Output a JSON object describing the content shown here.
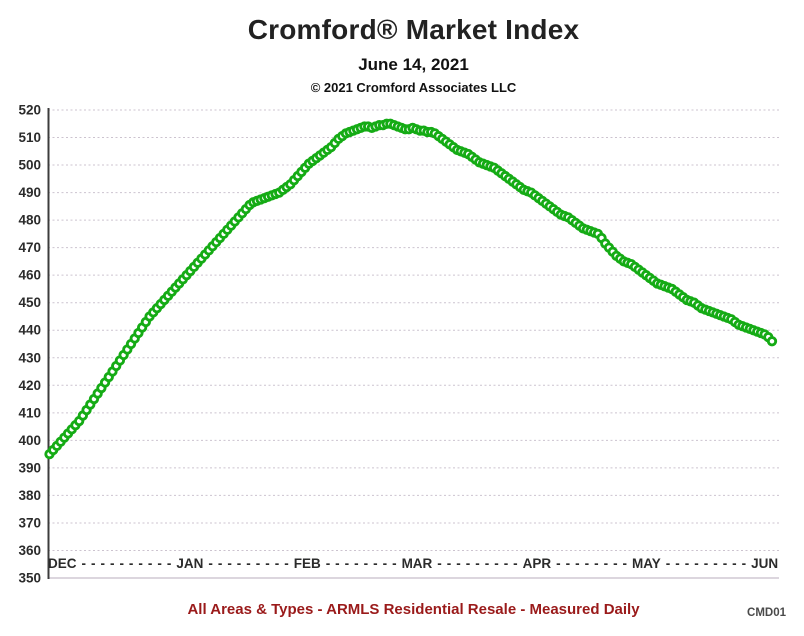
{
  "header": {
    "title": "Cromford® Market Index",
    "date": "June 14, 2021",
    "copyright": "© 2021 Cromford Associates LLC"
  },
  "footer": {
    "caption": "All Areas & Types - ARMLS Residential Resale - Measured Daily",
    "code": "CMD01"
  },
  "colors": {
    "marker_green": "#15ab15",
    "footer_red": "#9a1a1a",
    "gridline": "#ccc3cf",
    "axis_line": "#3c3c3c",
    "tick_label": "#2b2b2b"
  },
  "chart_data": {
    "type": "scatter",
    "title": "Cromford® Market Index",
    "subtitle": "June 14, 2021",
    "frequency": "daily",
    "x_range": {
      "start": "Dec 1, 2020",
      "end": "Jun 14, 2021"
    },
    "x_axis": {
      "tick_labels": [
        "DEC",
        "JAN",
        "FEB",
        "MAR",
        "APR",
        "MAY",
        "JUN"
      ],
      "dash_counts_between": [
        10,
        9,
        8,
        9,
        8,
        9
      ]
    },
    "y_axis": {
      "min": 350,
      "max": 520,
      "tick_step": 10
    },
    "grid": true,
    "legend": false,
    "marker": {
      "shape": "ring",
      "color": "#15ab15"
    },
    "series": [
      {
        "name": "Cromford Market Index",
        "values": [
          395,
          396.5,
          398,
          399.5,
          401,
          402.5,
          404,
          405.5,
          407,
          409,
          411,
          413,
          415,
          417,
          419,
          421,
          423,
          425,
          427,
          429,
          431,
          433,
          435,
          437,
          439,
          441,
          443,
          445,
          446.5,
          448,
          449.5,
          451,
          452.5,
          454,
          455.5,
          457,
          458.5,
          460,
          461.5,
          463,
          464.5,
          466,
          467.5,
          469,
          470.5,
          472,
          473.5,
          475,
          476.5,
          478,
          479.5,
          481,
          482.5,
          484,
          485.5,
          486.5,
          487,
          487.5,
          488,
          488.5,
          489,
          489.5,
          490,
          491,
          492,
          493,
          494.5,
          496,
          497.5,
          499,
          500.5,
          501.5,
          502.5,
          503.5,
          504.5,
          505.5,
          506.5,
          508,
          509.5,
          510.5,
          511.5,
          512,
          512.5,
          513,
          513.5,
          514,
          514,
          513.5,
          514,
          514.5,
          514.5,
          515,
          515,
          514.5,
          514,
          513.5,
          513,
          513,
          513.5,
          513,
          512.5,
          512.5,
          512,
          512,
          511.5,
          510.5,
          509.5,
          508.5,
          507.5,
          506.5,
          505.5,
          505,
          504.5,
          504,
          503,
          502,
          501,
          500.5,
          500,
          499.5,
          499,
          498,
          497,
          496,
          495,
          494,
          493,
          492,
          491,
          490.5,
          490,
          489,
          488,
          487,
          486,
          485,
          484,
          483,
          482,
          481.5,
          481,
          480,
          479,
          478,
          477,
          476.5,
          476,
          475.5,
          475,
          473.5,
          471.5,
          470,
          468.5,
          467,
          466,
          465,
          464.5,
          464,
          463,
          462,
          461,
          460,
          459,
          458,
          457,
          456.5,
          456,
          455.5,
          455,
          454,
          453,
          452,
          451,
          450.5,
          450,
          449,
          448,
          447.5,
          447,
          446.5,
          446,
          445.5,
          445,
          444.5,
          444,
          443,
          442,
          441.5,
          441,
          440.5,
          440,
          439.5,
          439,
          438.5,
          437.5,
          436
        ]
      }
    ]
  }
}
